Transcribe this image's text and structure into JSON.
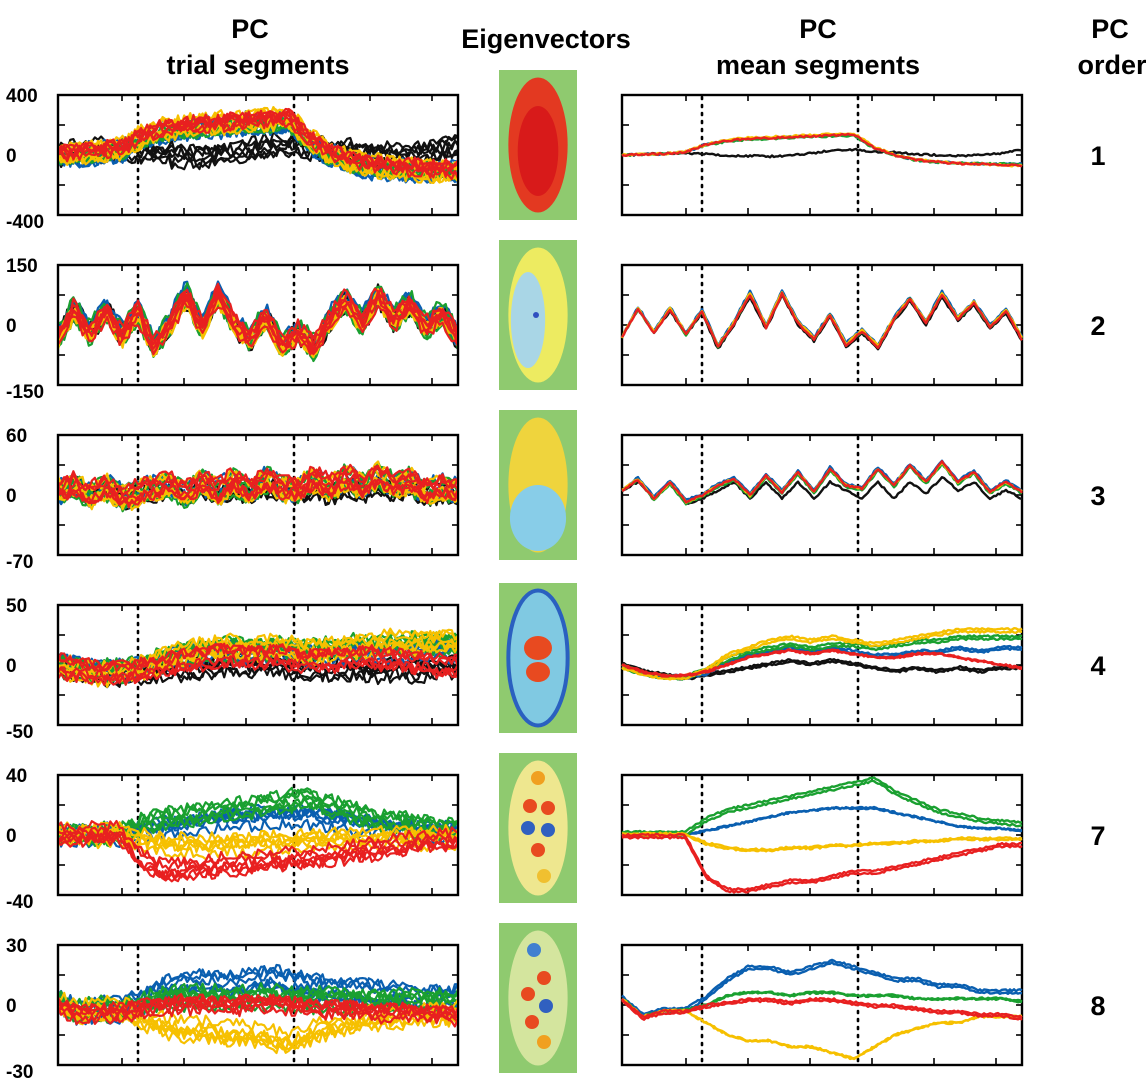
{
  "headers": {
    "trial": [
      "PC",
      "trial segments"
    ],
    "eigen": "Eigenvectors",
    "mean": [
      "PC",
      "mean segments"
    ],
    "order": [
      "PC",
      "order"
    ]
  },
  "colors": {
    "black": "#111111",
    "blue": "#0a5fb0",
    "green": "#1aa030",
    "yellow": "#f6c000",
    "red": "#e82020",
    "map_background": "#8fca6f"
  },
  "chart_data": [
    {
      "type": "line",
      "pc_order": "1",
      "trial_yticks": [
        "400",
        "0",
        "-400"
      ],
      "trial_ylim": [
        -400,
        400
      ],
      "mean_ylim": [
        -400,
        400
      ],
      "x_range": [
        0,
        1
      ],
      "event_markers_x": [
        0.2,
        0.59
      ],
      "eigenvector_map": "whole-embryo positive (red/orange) weighting",
      "series": [
        {
          "color": "black",
          "values": [
            0,
            5,
            20,
            20,
            10,
            -5,
            -10,
            -15,
            -5,
            20,
            50,
            60,
            40,
            30,
            10,
            0,
            -10,
            0,
            20,
            60
          ]
        },
        {
          "color": "blue",
          "values": [
            0,
            5,
            15,
            30,
            120,
            160,
            180,
            190,
            200,
            210,
            220,
            225,
            80,
            0,
            -60,
            -80,
            -90,
            -100,
            -100,
            -100
          ]
        },
        {
          "color": "green",
          "values": [
            0,
            5,
            15,
            30,
            110,
            150,
            170,
            180,
            190,
            200,
            210,
            215,
            70,
            -10,
            -60,
            -80,
            -90,
            -95,
            -100,
            -105
          ]
        },
        {
          "color": "yellow",
          "values": [
            0,
            5,
            15,
            35,
            120,
            170,
            190,
            200,
            210,
            220,
            230,
            240,
            90,
            0,
            -50,
            -75,
            -90,
            -100,
            -110,
            -120
          ]
        },
        {
          "color": "red",
          "values": [
            0,
            5,
            15,
            30,
            115,
            160,
            180,
            190,
            200,
            210,
            220,
            230,
            80,
            -5,
            -55,
            -80,
            -95,
            -100,
            -110,
            -115
          ]
        }
      ]
    },
    {
      "type": "line",
      "pc_order": "2",
      "trial_yticks": [
        "150",
        "0",
        "-150"
      ],
      "trial_ylim": [
        -150,
        150
      ],
      "mean_ylim": [
        -150,
        150
      ],
      "x_range": [
        0,
        1
      ],
      "event_markers_x": [
        0.2,
        0.59
      ],
      "eigenvector_map": "yellow/blue anterior-posterior pattern with small central spot",
      "series": [
        {
          "color": "black",
          "values": [
            -30,
            40,
            -20,
            35,
            -25,
            30,
            -60,
            0,
            70,
            -10,
            75,
            0,
            -40,
            20,
            -55,
            -20,
            -60,
            10,
            60,
            0,
            70,
            10,
            50,
            -10,
            30,
            -40
          ]
        },
        {
          "color": "blue",
          "values": [
            -30,
            45,
            -15,
            45,
            -20,
            40,
            -50,
            10,
            85,
            0,
            85,
            10,
            -30,
            30,
            -45,
            -10,
            -50,
            20,
            70,
            10,
            85,
            20,
            60,
            0,
            40,
            -30
          ]
        },
        {
          "color": "green",
          "values": [
            -30,
            40,
            -20,
            40,
            -25,
            35,
            -55,
            5,
            78,
            -5,
            80,
            5,
            -35,
            25,
            -50,
            -15,
            -55,
            15,
            65,
            5,
            78,
            15,
            55,
            -5,
            35,
            -35
          ]
        },
        {
          "color": "yellow",
          "values": [
            -30,
            42,
            -18,
            42,
            -22,
            37,
            -52,
            7,
            80,
            -3,
            82,
            7,
            -33,
            27,
            -48,
            -12,
            -52,
            17,
            67,
            7,
            80,
            17,
            57,
            -3,
            37,
            -32
          ]
        },
        {
          "color": "red",
          "values": [
            -30,
            40,
            -20,
            38,
            -24,
            34,
            -56,
            4,
            76,
            -6,
            78,
            4,
            -36,
            24,
            -51,
            -16,
            -56,
            14,
            64,
            4,
            76,
            14,
            54,
            -6,
            34,
            -36
          ]
        }
      ]
    },
    {
      "type": "line",
      "pc_order": "3",
      "trial_yticks": [
        "60",
        "0",
        "-70"
      ],
      "trial_ylim": [
        -70,
        60
      ],
      "mean_ylim": [
        -70,
        60
      ],
      "x_range": [
        0,
        1
      ],
      "event_markers_x": [
        0.2,
        0.59
      ],
      "eigenvector_map": "yellow anterior half, blue posterior half",
      "series": [
        {
          "color": "black",
          "values": [
            0,
            5,
            -5,
            5,
            -8,
            -5,
            0,
            5,
            -5,
            5,
            -5,
            5,
            -5,
            5,
            0,
            -5,
            5,
            -5,
            5,
            -2,
            8,
            0,
            5,
            -5,
            0,
            -5
          ]
        },
        {
          "color": "blue",
          "values": [
            0,
            8,
            -4,
            6,
            -6,
            -2,
            4,
            8,
            -2,
            10,
            0,
            12,
            0,
            14,
            4,
            2,
            14,
            4,
            16,
            6,
            18,
            6,
            12,
            0,
            6,
            0
          ]
        },
        {
          "color": "green",
          "values": [
            0,
            6,
            -6,
            4,
            -8,
            -4,
            2,
            6,
            -4,
            8,
            -2,
            10,
            -2,
            12,
            2,
            0,
            12,
            2,
            14,
            4,
            16,
            4,
            10,
            -2,
            4,
            -2
          ]
        },
        {
          "color": "yellow",
          "values": [
            0,
            7,
            -5,
            5,
            -7,
            -3,
            3,
            7,
            -3,
            9,
            -1,
            11,
            -1,
            13,
            3,
            1,
            13,
            3,
            15,
            5,
            17,
            5,
            11,
            -1,
            5,
            -1
          ]
        },
        {
          "color": "red",
          "values": [
            0,
            6,
            -5,
            5,
            -7,
            -3,
            3,
            7,
            -3,
            9,
            -1,
            11,
            -1,
            13,
            3,
            1,
            13,
            3,
            15,
            5,
            17,
            5,
            11,
            -1,
            5,
            -1
          ]
        }
      ]
    },
    {
      "type": "line",
      "pc_order": "4",
      "trial_yticks": [
        "50",
        "0",
        "-50"
      ],
      "trial_ylim": [
        -50,
        50
      ],
      "mean_ylim": [
        -50,
        50
      ],
      "x_range": [
        0,
        1
      ],
      "event_markers_x": [
        0.2,
        0.59
      ],
      "eigenvector_map": "central red/yellow spots, blue periphery",
      "series": [
        {
          "color": "black",
          "values": [
            0,
            -4,
            -6,
            -8,
            -6,
            -4,
            -2,
            0,
            2,
            0,
            2,
            0,
            -2,
            -4,
            -2,
            -4,
            -2,
            -4,
            -2,
            -2
          ]
        },
        {
          "color": "blue",
          "values": [
            0,
            -4,
            -6,
            -6,
            -4,
            2,
            6,
            8,
            10,
            8,
            10,
            8,
            6,
            6,
            8,
            8,
            10,
            8,
            10,
            10
          ]
        },
        {
          "color": "green",
          "values": [
            0,
            -4,
            -6,
            -6,
            -2,
            4,
            8,
            10,
            12,
            10,
            12,
            12,
            10,
            12,
            14,
            14,
            16,
            16,
            16,
            16
          ]
        },
        {
          "color": "yellow",
          "values": [
            0,
            -4,
            -6,
            -6,
            -2,
            6,
            10,
            14,
            16,
            14,
            16,
            14,
            12,
            14,
            16,
            18,
            20,
            20,
            20,
            20
          ]
        },
        {
          "color": "red",
          "values": [
            0,
            -4,
            -6,
            -6,
            -4,
            0,
            4,
            6,
            8,
            6,
            8,
            6,
            4,
            4,
            6,
            6,
            4,
            2,
            0,
            -2
          ]
        }
      ]
    },
    {
      "type": "line",
      "pc_order": "7",
      "trial_yticks": [
        "40",
        "0",
        "-40"
      ],
      "trial_ylim": [
        -40,
        40
      ],
      "mean_ylim": [
        -40,
        40
      ],
      "x_range": [
        0,
        1
      ],
      "event_markers_x": [
        0.2,
        0.59
      ],
      "eigenvector_map": "scattered red/yellow and blue spots",
      "series": [
        {
          "color": "blue",
          "values": [
            0,
            0,
            0,
            0,
            2,
            4,
            6,
            8,
            10,
            11,
            12,
            12,
            12,
            10,
            8,
            6,
            4,
            3,
            3,
            2
          ]
        },
        {
          "color": "green",
          "values": [
            0,
            0,
            0,
            0,
            6,
            10,
            12,
            14,
            16,
            18,
            20,
            22,
            24,
            18,
            14,
            10,
            8,
            6,
            5,
            4
          ]
        },
        {
          "color": "yellow",
          "values": [
            0,
            0,
            0,
            0,
            -4,
            -6,
            -7,
            -7,
            -6,
            -6,
            -5,
            -5,
            -4,
            -4,
            -3,
            -3,
            -2,
            -2,
            -2,
            -2
          ]
        },
        {
          "color": "red",
          "values": [
            0,
            0,
            0,
            0,
            -18,
            -24,
            -24,
            -22,
            -20,
            -20,
            -18,
            -16,
            -16,
            -14,
            -12,
            -10,
            -8,
            -6,
            -4,
            -4
          ]
        }
      ]
    },
    {
      "type": "line",
      "pc_order": "8",
      "trial_yticks": [
        "30",
        "0",
        "-30"
      ],
      "trial_ylim": [
        -30,
        30
      ],
      "mean_ylim": [
        -30,
        30
      ],
      "x_range": [
        0,
        1
      ],
      "event_markers_x": [
        0.2,
        0.59
      ],
      "eigenvector_map": "scattered red/yellow and blue spots",
      "series": [
        {
          "color": "blue",
          "values": [
            2,
            -4,
            -2,
            -2,
            2,
            8,
            12,
            12,
            10,
            12,
            14,
            12,
            10,
            8,
            8,
            6,
            6,
            4,
            4,
            4
          ]
        },
        {
          "color": "green",
          "values": [
            2,
            -4,
            -2,
            -2,
            0,
            3,
            4,
            4,
            3,
            4,
            4,
            3,
            3,
            3,
            2,
            2,
            2,
            2,
            2,
            1
          ]
        },
        {
          "color": "yellow",
          "values": [
            2,
            -4,
            -2,
            -2,
            -6,
            -10,
            -12,
            -12,
            -14,
            -14,
            -16,
            -18,
            -14,
            -10,
            -8,
            -6,
            -6,
            -4,
            -4,
            -4
          ]
        },
        {
          "color": "red",
          "values": [
            2,
            -4,
            -2,
            -2,
            0,
            1,
            2,
            2,
            1,
            2,
            2,
            1,
            0,
            0,
            -1,
            -2,
            -2,
            -3,
            -3,
            -4
          ]
        }
      ]
    }
  ]
}
